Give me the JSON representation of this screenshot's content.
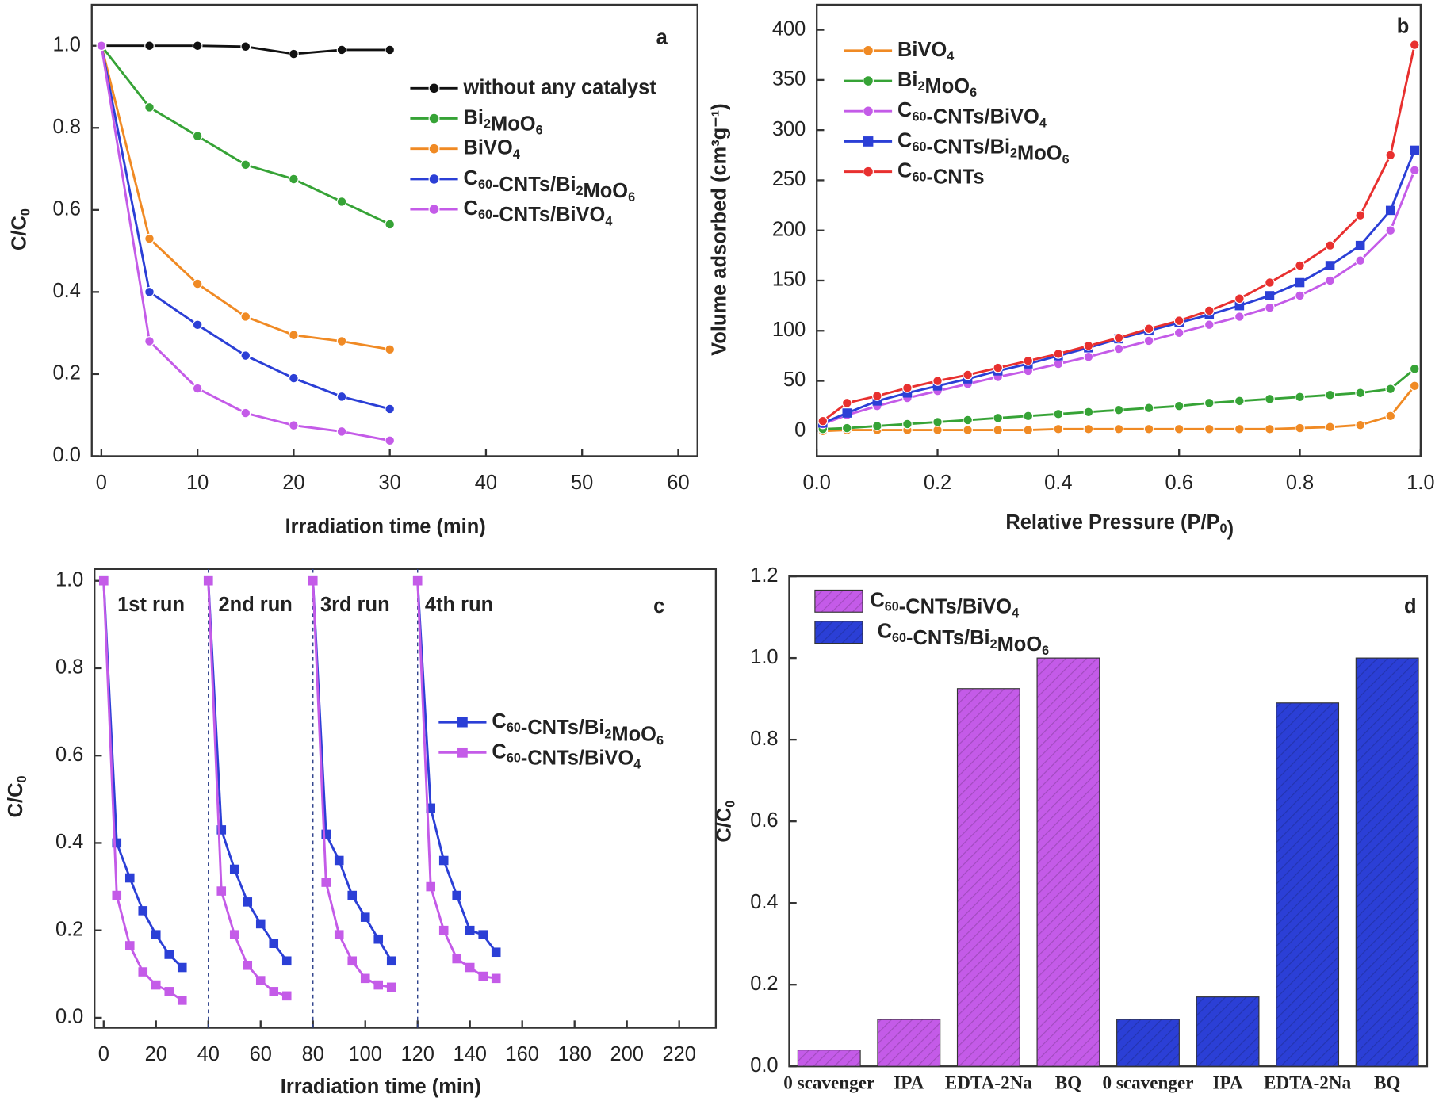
{
  "chart_data": [
    {
      "type": "line",
      "label": "a",
      "xlabel": "Irradiation time (min)",
      "ylabel": "C/C0",
      "x": [
        0,
        5,
        10,
        15,
        20,
        25,
        30
      ],
      "xlim": [
        -1,
        62
      ],
      "xticks": [
        0,
        10,
        20,
        30,
        40,
        50,
        60
      ],
      "ylim": [
        0,
        1.1
      ],
      "yticks": [
        {
          "value": 0,
          "label": "0.0"
        },
        {
          "value": 0.2,
          "label": "0.2"
        },
        {
          "value": 0.4,
          "label": "0.4"
        },
        {
          "value": 0.6,
          "label": "0.6"
        },
        {
          "value": 0.8,
          "label": "0.8"
        },
        {
          "value": 1,
          "label": "1.0"
        }
      ],
      "series": [
        {
          "name": "without any catalyst",
          "color": "#111111",
          "marker": "circle",
          "values": [
            1.0,
            1.0,
            1.0,
            0.998,
            0.98,
            0.99,
            0.99
          ]
        },
        {
          "name": "Bi2MoO6",
          "color": "#36a336",
          "marker": "circle",
          "values": [
            1.0,
            0.85,
            0.78,
            0.71,
            0.675,
            0.62,
            0.565
          ]
        },
        {
          "name": "BiVO4",
          "color": "#f08a24",
          "marker": "circle",
          "values": [
            1.0,
            0.53,
            0.42,
            0.34,
            0.295,
            0.28,
            0.26
          ]
        },
        {
          "name": "C60-CNTs/Bi2MoO6",
          "color": "#2b3fd6",
          "marker": "circle",
          "values": [
            1.0,
            0.4,
            0.32,
            0.245,
            0.19,
            0.145,
            0.115
          ]
        },
        {
          "name": "C60-CNTs/BiVO4",
          "color": "#c45be8",
          "marker": "circle",
          "values": [
            1.0,
            0.28,
            0.165,
            0.105,
            0.075,
            0.06,
            0.038
          ]
        }
      ]
    },
    {
      "type": "line",
      "label": "b",
      "xlabel": "Relative Pressure (P/P0)",
      "ylabel": "Volume adsorbed (cm³g⁻¹)",
      "x": [
        0.01,
        0.05,
        0.1,
        0.15,
        0.2,
        0.25,
        0.3,
        0.35,
        0.4,
        0.45,
        0.5,
        0.55,
        0.6,
        0.65,
        0.7,
        0.75,
        0.8,
        0.85,
        0.9,
        0.95,
        0.99
      ],
      "xlim": [
        0,
        1
      ],
      "xticks": [
        {
          "value": 0,
          "label": "0.0"
        },
        {
          "value": 0.2,
          "label": "0.2"
        },
        {
          "value": 0.4,
          "label": "0.4"
        },
        {
          "value": 0.6,
          "label": "0.6"
        },
        {
          "value": 0.8,
          "label": "0.8"
        },
        {
          "value": 1,
          "label": "1.0"
        }
      ],
      "ylim": [
        -25,
        425
      ],
      "yticks": [
        0,
        50,
        100,
        150,
        200,
        250,
        300,
        350,
        400
      ],
      "series": [
        {
          "name": "BiVO4",
          "color": "#f08a24",
          "marker": "circle",
          "values": [
            0,
            1,
            1,
            1,
            1,
            1,
            1,
            1,
            2,
            2,
            2,
            2,
            2,
            2,
            2,
            2,
            3,
            4,
            6,
            15,
            45
          ]
        },
        {
          "name": "Bi2MoO6",
          "color": "#36a336",
          "marker": "circle",
          "values": [
            2,
            3,
            5,
            7,
            9,
            11,
            13,
            15,
            17,
            19,
            21,
            23,
            25,
            28,
            30,
            32,
            34,
            36,
            38,
            42,
            62
          ]
        },
        {
          "name": "C60-CNTs/BiVO4",
          "color": "#c45be8",
          "marker": "circle",
          "values": [
            7,
            16,
            25,
            33,
            40,
            47,
            54,
            60,
            67,
            74,
            82,
            90,
            98,
            106,
            114,
            123,
            135,
            150,
            170,
            200,
            260
          ]
        },
        {
          "name": "C60-CNTs/Bi2MoO6",
          "color": "#2b3fd6",
          "marker": "square",
          "values": [
            8,
            18,
            30,
            38,
            45,
            52,
            60,
            67,
            75,
            83,
            92,
            100,
            108,
            116,
            125,
            135,
            148,
            165,
            185,
            220,
            280
          ]
        },
        {
          "name": "C60-CNTs",
          "color": "#e8302f",
          "marker": "circle",
          "values": [
            10,
            28,
            35,
            43,
            50,
            56,
            63,
            70,
            77,
            85,
            93,
            102,
            110,
            120,
            132,
            148,
            165,
            185,
            215,
            275,
            385
          ]
        }
      ]
    },
    {
      "type": "line",
      "label": "c",
      "xlabel": "Irradiation time (min)",
      "ylabel": "C/C0",
      "annotations": [
        "1st run",
        "2nd run",
        "3rd run",
        "4th run"
      ],
      "dividers": [
        40,
        80,
        120
      ],
      "x": [
        0,
        5,
        10,
        15,
        20,
        25,
        30,
        35,
        40,
        45,
        50,
        55,
        60,
        65,
        70,
        75,
        80,
        85,
        90,
        95,
        100,
        105,
        110,
        115,
        120,
        125,
        130,
        135,
        140,
        145,
        150
      ],
      "xlim": [
        -3.5,
        234
      ],
      "xticks": [
        0,
        20,
        40,
        60,
        80,
        100,
        120,
        140,
        160,
        180,
        200,
        220
      ],
      "ylim": [
        -0.023,
        1.027
      ],
      "yticks": [
        {
          "value": 0,
          "label": "0.0"
        },
        {
          "value": 0.2,
          "label": "0.2"
        },
        {
          "value": 0.4,
          "label": "0.4"
        },
        {
          "value": 0.6,
          "label": "0.6"
        },
        {
          "value": 0.8,
          "label": "0.8"
        },
        {
          "value": 1,
          "label": "1.0"
        }
      ],
      "series": [
        {
          "name": "C60-CNTs/Bi2MoO6",
          "color": "#2b3fd6",
          "marker": "square",
          "values": [
            1.0,
            0.4,
            0.32,
            0.245,
            0.19,
            0.145,
            0.115,
            null,
            1.0,
            0.43,
            0.34,
            0.265,
            0.215,
            0.17,
            0.13,
            null,
            1.0,
            0.42,
            0.36,
            0.28,
            0.23,
            0.18,
            0.13,
            null,
            1.0,
            0.48,
            0.36,
            0.28,
            0.2,
            0.19,
            0.15
          ]
        },
        {
          "name": "C60-CNTs/BiVO4",
          "color": "#c45be8",
          "marker": "square",
          "values": [
            1.0,
            0.28,
            0.165,
            0.105,
            0.075,
            0.06,
            0.04,
            null,
            1.0,
            0.29,
            0.19,
            0.12,
            0.085,
            0.06,
            0.05,
            null,
            1.0,
            0.31,
            0.19,
            0.13,
            0.09,
            0.075,
            0.07,
            null,
            1.0,
            0.3,
            0.2,
            0.135,
            0.115,
            0.095,
            0.09
          ]
        }
      ]
    },
    {
      "type": "bar",
      "label": "d",
      "ylabel": "C/C0",
      "categories": [
        "0 scavenger",
        "IPA",
        "EDTA-2Na",
        "BQ",
        "0 scavenger",
        "IPA",
        "EDTA-2Na",
        "BQ"
      ],
      "ylim": [
        0,
        1.2
      ],
      "yticks": [
        {
          "value": 0,
          "label": "0.0"
        },
        {
          "value": 0.2,
          "label": "0.2"
        },
        {
          "value": 0.4,
          "label": "0.4"
        },
        {
          "value": 0.6,
          "label": "0.6"
        },
        {
          "value": 0.8,
          "label": "0.8"
        },
        {
          "value": 1,
          "label": "1.0"
        },
        {
          "value": 1.2,
          "label": "1.2"
        }
      ],
      "series": [
        {
          "name": "C60-CNTs/BiVO4",
          "color": "#c45be8",
          "values": [
            0.04,
            0.115,
            0.925,
            1.0,
            null,
            null,
            null,
            null
          ]
        },
        {
          "name": "C60-CNTs/Bi2MoO6",
          "color": "#2b3fd6",
          "values": [
            null,
            null,
            null,
            null,
            0.115,
            0.17,
            0.89,
            1.0
          ]
        }
      ]
    }
  ]
}
